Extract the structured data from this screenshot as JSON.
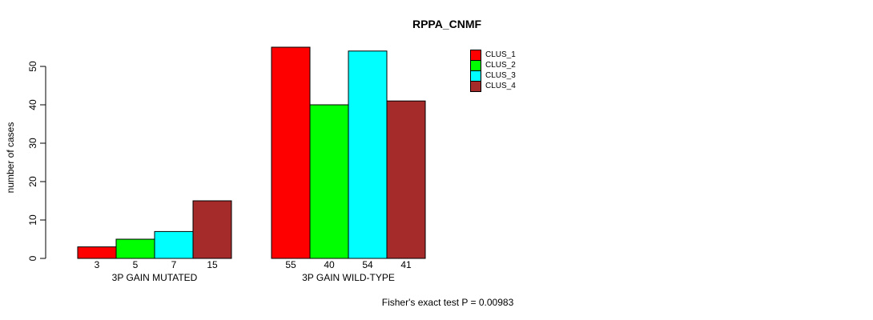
{
  "title": "RPPA_CNMF",
  "chart_data": {
    "type": "bar",
    "title": "RPPA_CNMF",
    "xlabel": "",
    "ylabel": "number of cases",
    "ylim": [
      0,
      57
    ],
    "yticks": [
      0,
      10,
      20,
      30,
      40,
      50
    ],
    "grid": false,
    "legend_position": "right",
    "categories": [
      "3P GAIN MUTATED",
      "3P GAIN WILD-TYPE"
    ],
    "series": [
      {
        "name": "CLUS_1",
        "color": "#FF0000",
        "values": [
          3,
          55
        ]
      },
      {
        "name": "CLUS_2",
        "color": "#00FF00",
        "values": [
          5,
          40
        ]
      },
      {
        "name": "CLUS_3",
        "color": "#00FFFF",
        "values": [
          7,
          54
        ]
      },
      {
        "name": "CLUS_4",
        "color": "#A52A2A",
        "values": [
          15,
          41
        ]
      }
    ],
    "bar_value_labels": [
      [
        "3",
        "5",
        "7",
        "15"
      ],
      [
        "55",
        "40",
        "54",
        "41"
      ]
    ],
    "annotation": "Fisher's exact test P = 0.00983"
  }
}
